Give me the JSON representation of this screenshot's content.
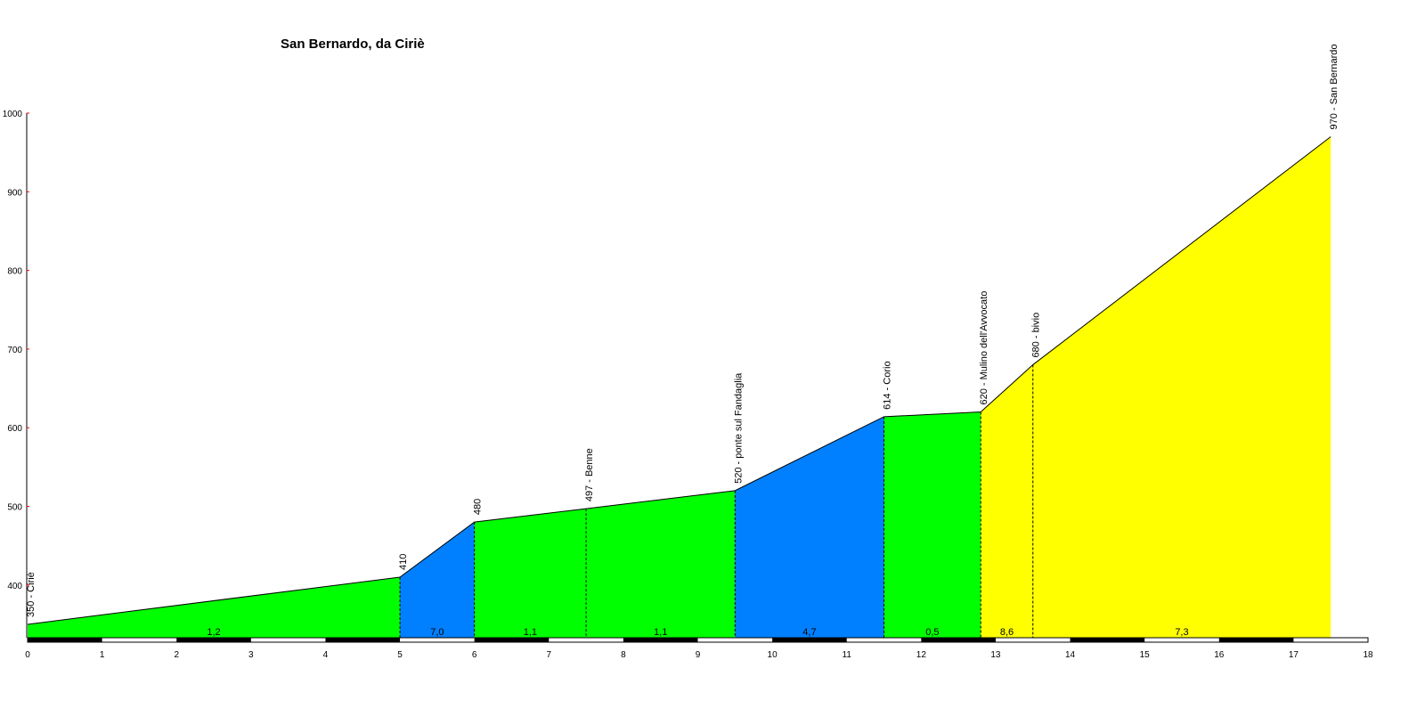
{
  "chart_data": {
    "type": "area",
    "title": "San Bernardo, da Ciriè",
    "xlabel": "",
    "ylabel": "",
    "xlim": [
      0,
      18
    ],
    "ylim": [
      333,
      1000
    ],
    "x_ticks": [
      0,
      1,
      2,
      3,
      4,
      5,
      6,
      7,
      8,
      9,
      10,
      11,
      12,
      13,
      14,
      15,
      16,
      17,
      18
    ],
    "y_ticks": [
      400,
      500,
      600,
      700,
      800,
      900,
      1000
    ],
    "grid": false,
    "points": [
      {
        "km": 0,
        "elevation": 350,
        "label": "350 - Ciriè"
      },
      {
        "km": 5,
        "elevation": 410,
        "label": "410"
      },
      {
        "km": 6,
        "elevation": 480,
        "label": "480"
      },
      {
        "km": 7.5,
        "elevation": 497,
        "label": "497 - Benne"
      },
      {
        "km": 9.5,
        "elevation": 520,
        "label": "520 - ponte sul Fandaglia"
      },
      {
        "km": 11.5,
        "elevation": 614,
        "label": "614 - Corio"
      },
      {
        "km": 12.8,
        "elevation": 620,
        "label": "620 - Mulino dell'Avvocato"
      },
      {
        "km": 13.5,
        "elevation": 680,
        "label": "680 - bivio"
      },
      {
        "km": 17.5,
        "elevation": 970,
        "label": "970 - San Bernardo"
      }
    ],
    "segments": [
      {
        "from": 0,
        "to": 5,
        "gradient": "1,2",
        "color": "#00ff00"
      },
      {
        "from": 5,
        "to": 6,
        "gradient": "7,0",
        "color": "#0080ff"
      },
      {
        "from": 6,
        "to": 7.5,
        "gradient": "1,1",
        "color": "#00ff00"
      },
      {
        "from": 7.5,
        "to": 9.5,
        "gradient": "1,1",
        "color": "#00ff00"
      },
      {
        "from": 9.5,
        "to": 11.5,
        "gradient": "4,7",
        "color": "#0080ff"
      },
      {
        "from": 11.5,
        "to": 12.8,
        "gradient": "0,5",
        "color": "#00ff00"
      },
      {
        "from": 12.8,
        "to": 13.5,
        "gradient": "8,6",
        "color": "#ffff00"
      },
      {
        "from": 13.5,
        "to": 17.5,
        "gradient": "7,3",
        "color": "#ffff00"
      }
    ],
    "colors": {
      "tick": "#ff0000",
      "axis": "#000000",
      "line": "#000000"
    }
  }
}
